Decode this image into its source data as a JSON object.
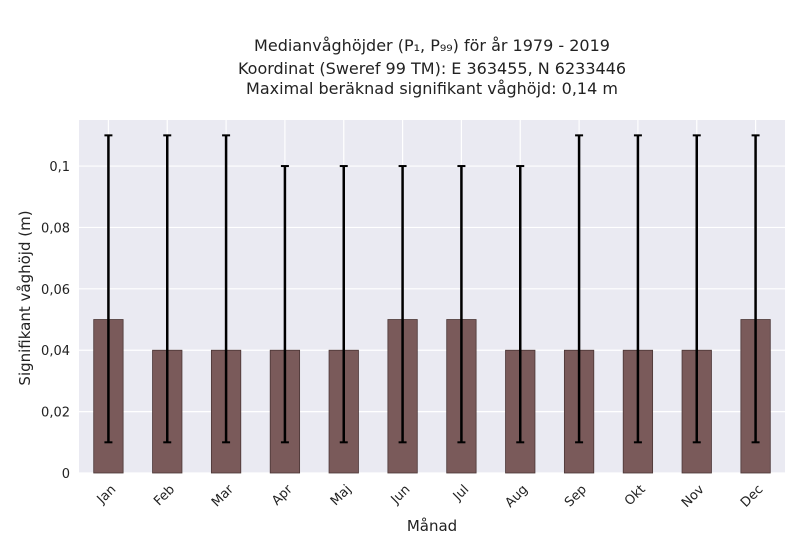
{
  "chart_data": {
    "type": "bar",
    "title_lines": [
      "Medianvåghöjder (P₁, P₉₉) för år 1979 - 2019",
      "Koordinat (Sweref 99 TM): E 363455, N 6233446",
      "Maximal beräknad signifikant våghöjd: 0,14 m"
    ],
    "xlabel": "Månad",
    "ylabel": "Signifikant våghöjd (m)",
    "categories": [
      "Jan",
      "Feb",
      "Mar",
      "Apr",
      "Maj",
      "Jun",
      "Jul",
      "Aug",
      "Sep",
      "Okt",
      "Nov",
      "Dec"
    ],
    "values": [
      0.05,
      0.04,
      0.04,
      0.04,
      0.04,
      0.05,
      0.05,
      0.04,
      0.04,
      0.04,
      0.04,
      0.05
    ],
    "error_low": [
      0.01,
      0.01,
      0.01,
      0.01,
      0.01,
      0.01,
      0.01,
      0.01,
      0.01,
      0.01,
      0.01,
      0.01
    ],
    "error_high": [
      0.11,
      0.11,
      0.11,
      0.1,
      0.1,
      0.1,
      0.1,
      0.1,
      0.11,
      0.11,
      0.11,
      0.11
    ],
    "ylim": [
      0,
      0.115
    ],
    "yticks": [
      0,
      0.02,
      0.04,
      0.06,
      0.08,
      0.1
    ],
    "ytick_labels": [
      "0",
      "0,02",
      "0,04",
      "0,06",
      "0,08",
      "0,1"
    ],
    "grid": true,
    "bar_color": "#7a5a5a",
    "bar_edge_color": "#4a3535",
    "error_color": "#000000",
    "plot_bg": "#eaeaf2",
    "grid_color": "#ffffff"
  }
}
